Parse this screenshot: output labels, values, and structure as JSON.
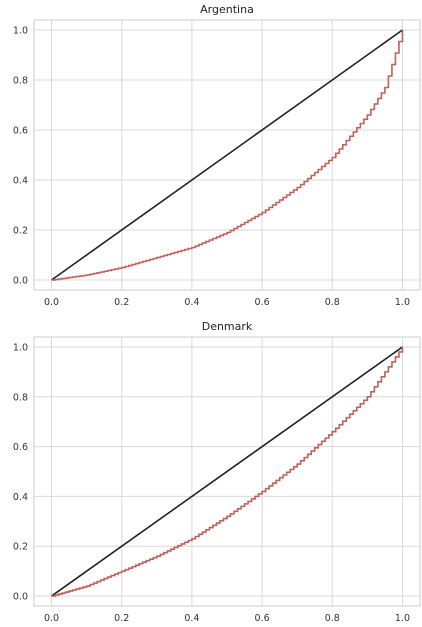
{
  "chart_data": [
    {
      "type": "line",
      "title": "Argentina",
      "xlabel": "",
      "ylabel": "",
      "xlim": [
        -0.05,
        1.05
      ],
      "ylim": [
        -0.04,
        1.04
      ],
      "x_ticks": [
        0.0,
        0.2,
        0.4,
        0.6,
        0.8,
        1.0
      ],
      "x_tick_labels": [
        "0.0",
        "0.2",
        "0.4",
        "0.6",
        "0.8",
        "1.0"
      ],
      "y_ticks": [
        0.0,
        0.2,
        0.4,
        0.6,
        0.8,
        1.0
      ],
      "y_tick_labels": [
        "0.0",
        "0.2",
        "0.4",
        "0.6",
        "0.8",
        "1.0"
      ],
      "grid": true,
      "series": [
        {
          "kind": "line",
          "color": "#222222",
          "x": [
            0,
            1
          ],
          "y": [
            0,
            1
          ]
        },
        {
          "kind": "step",
          "color": "#c0605a",
          "x": [
            0.0,
            0.1,
            0.2,
            0.3,
            0.4,
            0.5,
            0.6,
            0.7,
            0.8,
            0.9,
            0.95,
            1.0
          ],
          "y": [
            0.0,
            0.02,
            0.05,
            0.09,
            0.13,
            0.19,
            0.27,
            0.37,
            0.49,
            0.66,
            0.77,
            1.0
          ]
        }
      ]
    },
    {
      "type": "line",
      "title": "Denmark",
      "xlabel": "",
      "ylabel": "",
      "xlim": [
        -0.05,
        1.05
      ],
      "ylim": [
        -0.04,
        1.04
      ],
      "x_ticks": [
        0.0,
        0.2,
        0.4,
        0.6,
        0.8,
        1.0
      ],
      "x_tick_labels": [
        "0.0",
        "0.2",
        "0.4",
        "0.6",
        "0.8",
        "1.0"
      ],
      "y_ticks": [
        0.0,
        0.2,
        0.4,
        0.6,
        0.8,
        1.0
      ],
      "y_tick_labels": [
        "0.0",
        "0.2",
        "0.4",
        "0.6",
        "0.8",
        "1.0"
      ],
      "grid": true,
      "series": [
        {
          "kind": "line",
          "color": "#222222",
          "x": [
            0,
            1
          ],
          "y": [
            0,
            1
          ]
        },
        {
          "kind": "step",
          "color": "#c0605a",
          "x": [
            0.0,
            0.1,
            0.2,
            0.3,
            0.4,
            0.5,
            0.6,
            0.7,
            0.8,
            0.9,
            1.0
          ],
          "y": [
            0.0,
            0.04,
            0.1,
            0.16,
            0.23,
            0.32,
            0.42,
            0.53,
            0.66,
            0.8,
            1.0
          ]
        }
      ]
    }
  ]
}
